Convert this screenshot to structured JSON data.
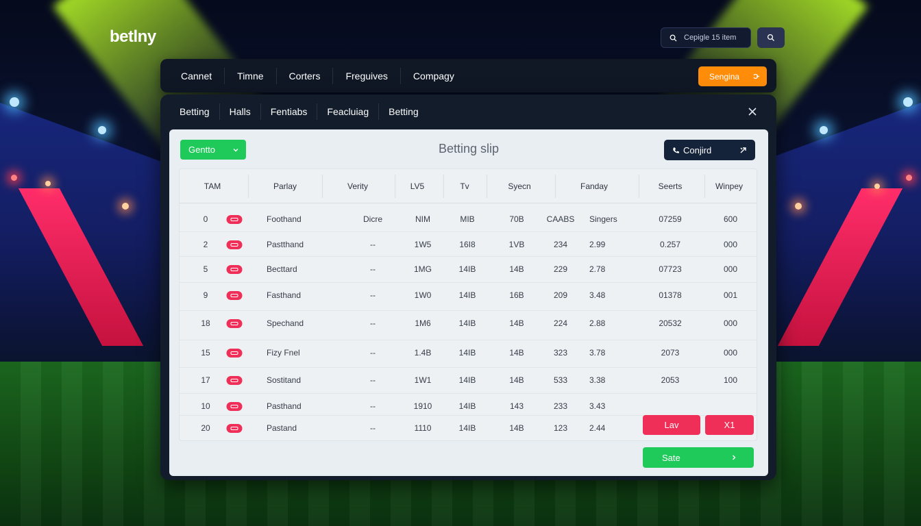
{
  "brand": {
    "name": "betlny"
  },
  "top_search": {
    "text": "Cepigle 15 item"
  },
  "nav": {
    "items": [
      "Cannet",
      "Timne",
      "Corters",
      "Freguives",
      "Compagy"
    ],
    "signup_label": "Sengina"
  },
  "panel": {
    "tabs": [
      "Betting",
      "Halls",
      "Fentiabs",
      "Feacluiag",
      "Betting"
    ]
  },
  "slip": {
    "title": "Betting slip",
    "select_label": "Gentto",
    "confirm_label": "Conjird",
    "columns": [
      "TAM",
      "Parlay",
      "Verity",
      "LV5",
      "Tv",
      "Syecn",
      "Fanday",
      "Seerts",
      "Winpey"
    ],
    "rows": [
      [
        "0",
        "Foothand",
        "Dicre",
        "NIM",
        "MIB",
        "70B",
        "CAABS",
        "Singers",
        "07259",
        "600"
      ],
      [
        "2",
        "Pastthand",
        "--",
        "1W5",
        "16I8",
        "1VB",
        "234",
        "2.99",
        "0.257",
        "000"
      ],
      [
        "5",
        "Becttard",
        "--",
        "1MG",
        "14IB",
        "14B",
        "229",
        "2.78",
        "07723",
        "000"
      ],
      [
        "9",
        "Fasthand",
        "--",
        "1W0",
        "14IB",
        "16B",
        "209",
        "3.48",
        "01378",
        "001"
      ],
      [
        "18",
        "Spechand",
        "--",
        "1M6",
        "14IB",
        "14B",
        "224",
        "2.88",
        "20532",
        "000"
      ],
      [
        "15",
        "Fizy Fnel",
        "--",
        "1.4B",
        "14IB",
        "14B",
        "323",
        "3.78",
        "2073",
        "000"
      ],
      [
        "17",
        "Sostitand",
        "--",
        "1W1",
        "14IB",
        "14B",
        "533",
        "3.38",
        "2053",
        "100"
      ],
      [
        "10",
        "Pasthand",
        "--",
        "1910",
        "14IB",
        "143",
        "233",
        "3.43",
        "",
        ""
      ],
      [
        "20",
        "Pastand",
        "--",
        "1110",
        "14IB",
        "14B",
        "123",
        "2.44",
        "",
        ""
      ]
    ],
    "lav_label": "Lav",
    "x_label": "X1",
    "save_label": "Sate"
  },
  "colors": {
    "accent_green": "#1fc95a",
    "accent_red": "#ef2f57",
    "accent_orange": "#ff8d0a",
    "panel_dark": "#131c2a"
  },
  "icons": [
    "search-icon",
    "user-icon",
    "close-icon",
    "chevron-down-icon",
    "phone-icon",
    "expand-icon",
    "chevron-right-icon",
    "ticket-icon"
  ]
}
